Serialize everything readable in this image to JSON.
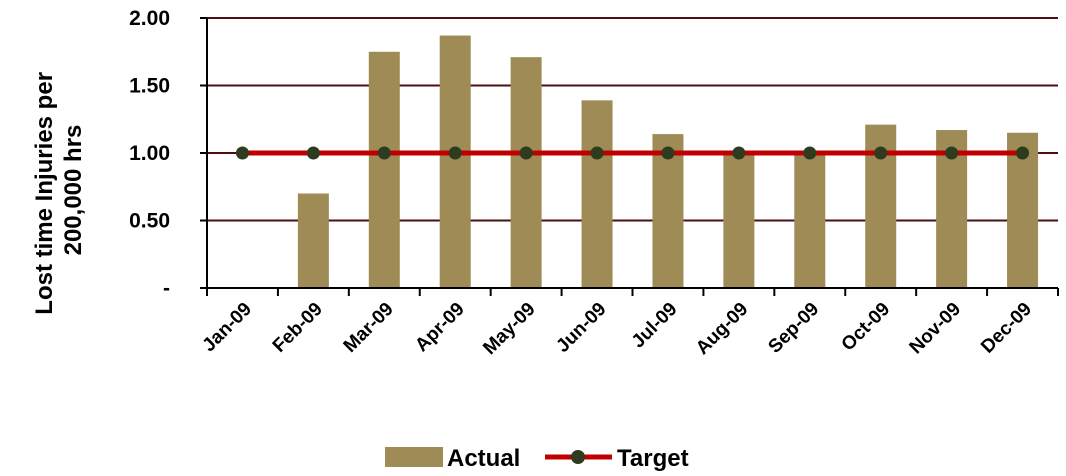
{
  "chart_data": {
    "type": "bar",
    "categories": [
      "Jan-09",
      "Feb-09",
      "Mar-09",
      "Apr-09",
      "May-09",
      "Jun-09",
      "Jul-09",
      "Aug-09",
      "Sep-09",
      "Oct-09",
      "Nov-09",
      "Dec-09"
    ],
    "series": [
      {
        "name": "Actual",
        "type": "bar",
        "color": "#9E8B56",
        "values": [
          0,
          0.7,
          1.75,
          1.87,
          1.71,
          1.39,
          1.14,
          0.99,
          0.99,
          1.21,
          1.17,
          1.15
        ]
      },
      {
        "name": "Target",
        "type": "line",
        "color": "#C00000",
        "marker_color": "#2E3B1F",
        "values": [
          1,
          1,
          1,
          1,
          1,
          1,
          1,
          1,
          1,
          1,
          1,
          1
        ]
      }
    ],
    "ylabel_lines": [
      "Lost time Injuries per",
      "200,000 hrs"
    ],
    "ylim": [
      0,
      2
    ],
    "yticks": [
      {
        "value": 0,
        "label": "-"
      },
      {
        "value": 0.5,
        "label": "0.50"
      },
      {
        "value": 1,
        "label": "1.00"
      },
      {
        "value": 1.5,
        "label": "1.50"
      },
      {
        "value": 2,
        "label": "2.00"
      }
    ],
    "grid": true,
    "legend": "bottom",
    "gridline_color": "#4A0F12"
  }
}
